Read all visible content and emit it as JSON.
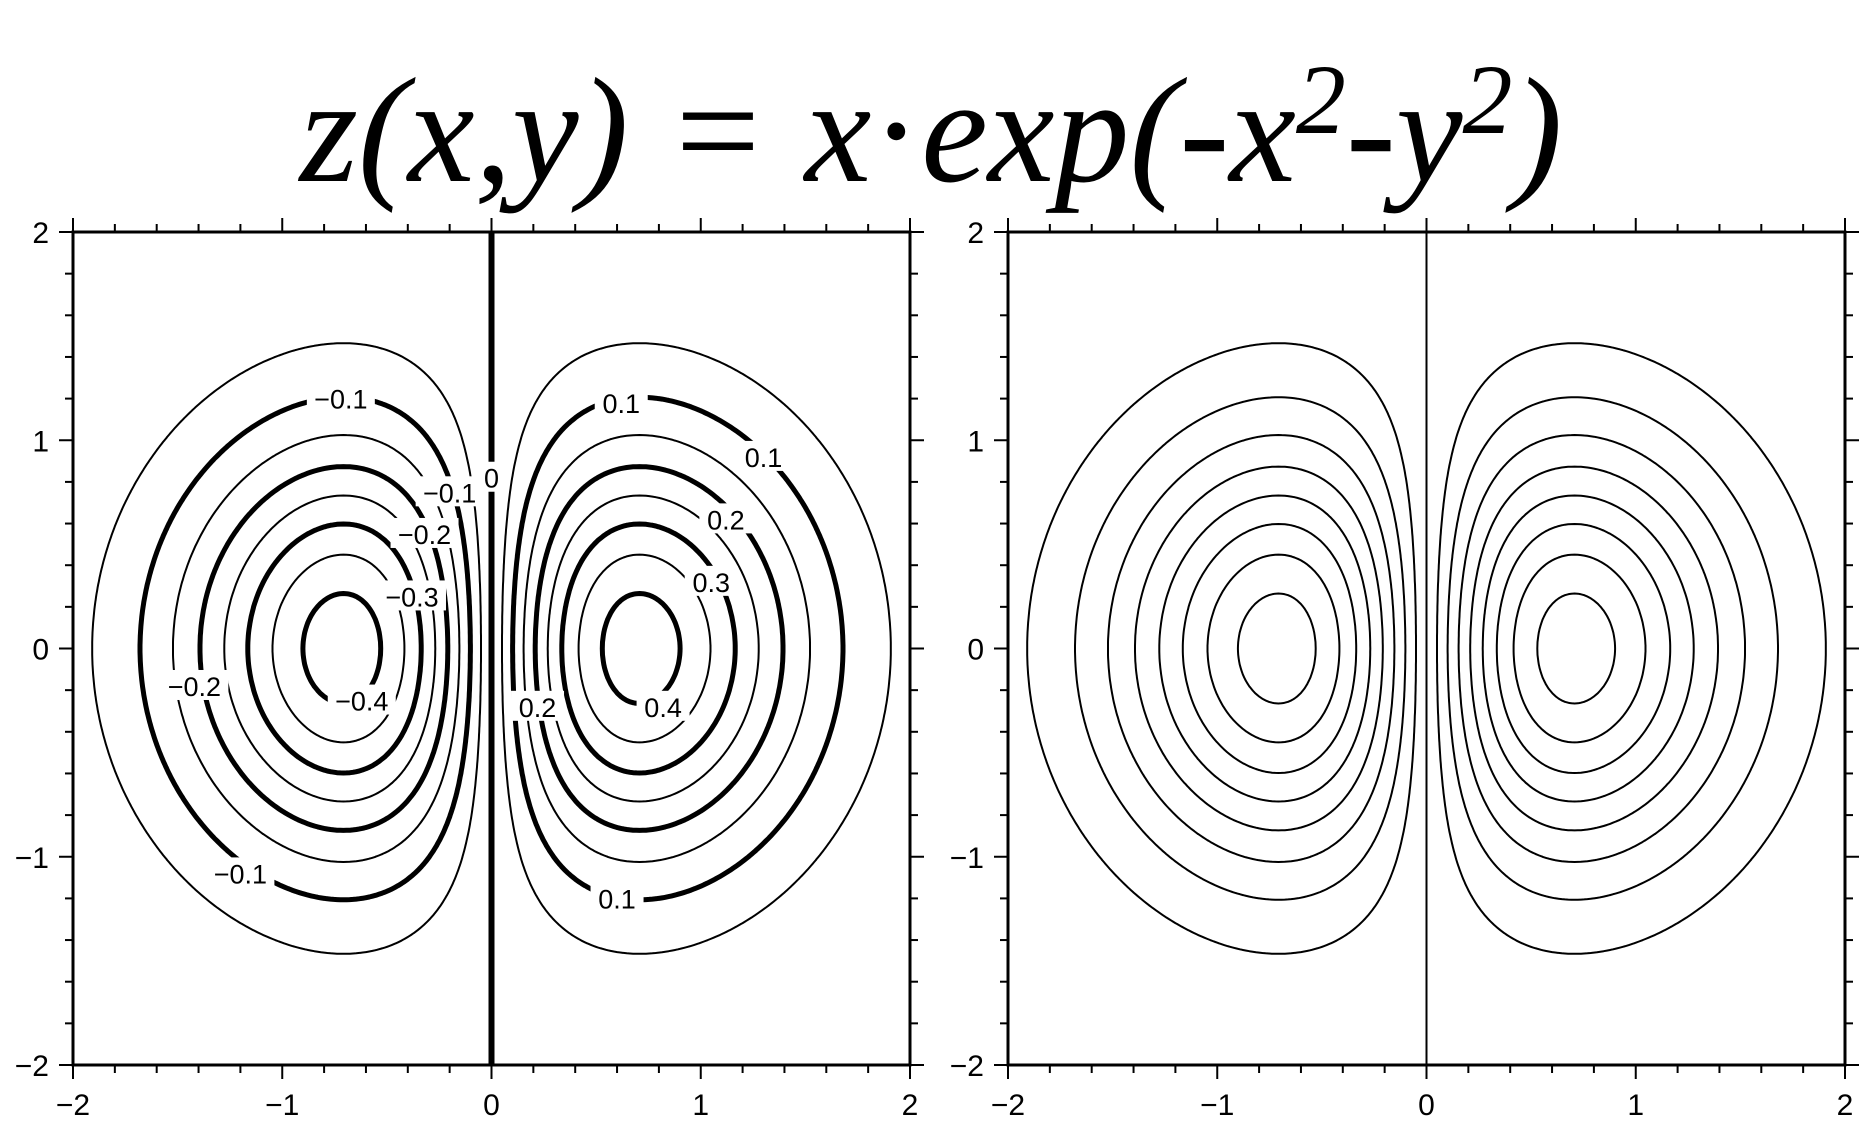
{
  "title": {
    "z": "z",
    "args": "(x,y) = x",
    "dot": "·",
    "exp": "exp(-x",
    "sup1": "2",
    "mid": "-y",
    "sup2": "2",
    "close": ")"
  },
  "chart_data": [
    {
      "type": "contour",
      "function": "x*exp(-x^2-y^2)",
      "xlim": [
        -2,
        2
      ],
      "ylim": [
        -2,
        2
      ],
      "xticks": [
        -2,
        -1,
        0,
        1,
        2
      ],
      "yticks": [
        -2,
        -1,
        0,
        1,
        2
      ],
      "xtick_labels": [
        "−2",
        "−1",
        "0",
        "1",
        "2"
      ],
      "ytick_labels": [
        "−2",
        "−1",
        "0",
        "1",
        "2"
      ],
      "contour_levels": [
        -0.4,
        -0.35,
        -0.3,
        -0.25,
        -0.2,
        -0.15,
        -0.1,
        -0.05,
        0,
        0.05,
        0.1,
        0.15,
        0.2,
        0.25,
        0.3,
        0.35,
        0.4
      ],
      "annotated_levels": [
        -0.4,
        -0.3,
        -0.2,
        -0.1,
        0,
        0.1,
        0.2,
        0.3,
        0.4
      ],
      "labels": [
        {
          "text": "−0.1",
          "x": -0.72,
          "y": 1.2
        },
        {
          "text": "−0.1",
          "x": -0.2,
          "y": 0.75
        },
        {
          "text": "−0.1",
          "x": -1.2,
          "y": -1.08
        },
        {
          "text": "−0.2",
          "x": -0.32,
          "y": 0.55
        },
        {
          "text": "−0.2",
          "x": -1.42,
          "y": -0.18
        },
        {
          "text": "−0.3",
          "x": -0.38,
          "y": 0.25
        },
        {
          "text": "−0.4",
          "x": -0.62,
          "y": -0.25
        },
        {
          "text": "0",
          "x": 0.0,
          "y": 0.82
        },
        {
          "text": "0.1",
          "x": 0.62,
          "y": 1.18
        },
        {
          "text": "0.1",
          "x": 1.3,
          "y": 0.92
        },
        {
          "text": "0.1",
          "x": 0.6,
          "y": -1.2
        },
        {
          "text": "0.2",
          "x": 1.12,
          "y": 0.62
        },
        {
          "text": "0.2",
          "x": 0.22,
          "y": -0.28
        },
        {
          "text": "0.3",
          "x": 1.05,
          "y": 0.32
        },
        {
          "text": "0.4",
          "x": 0.82,
          "y": -0.28
        }
      ]
    },
    {
      "type": "contour",
      "function": "x*exp(-x^2-y^2)",
      "xlim": [
        -2,
        2
      ],
      "ylim": [
        -2,
        2
      ],
      "xticks": [
        -2,
        -1,
        0,
        1,
        2
      ],
      "yticks": [
        -2,
        -1,
        0,
        1,
        2
      ],
      "xtick_labels": [
        "−2",
        "−1",
        "0",
        "1",
        "2"
      ],
      "ytick_labels": [
        "−2",
        "−1",
        "0",
        "1",
        "2"
      ],
      "contour_levels": [
        -0.4,
        -0.35,
        -0.3,
        -0.25,
        -0.2,
        -0.15,
        -0.1,
        -0.05,
        0,
        0.05,
        0.1,
        0.15,
        0.2,
        0.25,
        0.3,
        0.35,
        0.4
      ],
      "annotated_levels": [],
      "labels": []
    }
  ]
}
